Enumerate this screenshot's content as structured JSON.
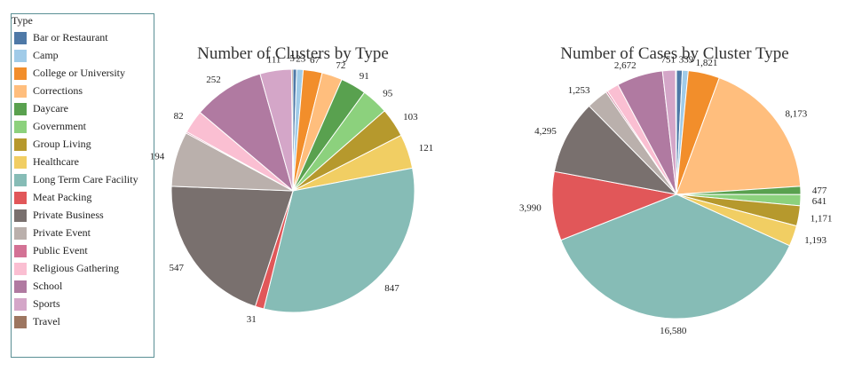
{
  "legend": {
    "title": "Type",
    "items": [
      {
        "label": "Bar or Restaurant",
        "color": "#4e79a7"
      },
      {
        "label": "Camp",
        "color": "#a0cbe8"
      },
      {
        "label": "College or University",
        "color": "#f28e2b"
      },
      {
        "label": "Corrections",
        "color": "#ffbe7d"
      },
      {
        "label": "Daycare",
        "color": "#59a14f"
      },
      {
        "label": "Government",
        "color": "#8cd17d"
      },
      {
        "label": "Group Living",
        "color": "#b6992d"
      },
      {
        "label": "Healthcare",
        "color": "#f1ce63"
      },
      {
        "label": "Long Term Care Facility",
        "color": "#86bcb6"
      },
      {
        "label": "Meat Packing",
        "color": "#e15759"
      },
      {
        "label": "Private Business",
        "color": "#79706e"
      },
      {
        "label": "Private Event",
        "color": "#bab0ac"
      },
      {
        "label": "Public Event",
        "color": "#d37295"
      },
      {
        "label": "Religious Gathering",
        "color": "#fabfd2"
      },
      {
        "label": "School",
        "color": "#b07aa1"
      },
      {
        "label": "Sports",
        "color": "#d4a6c8"
      },
      {
        "label": "Travel",
        "color": "#9d7660"
      }
    ]
  },
  "chart_data": [
    {
      "type": "pie",
      "title": "Number of Clusters by Type",
      "categories": [
        "Bar or Restaurant",
        "Camp",
        "College or University",
        "Corrections",
        "Daycare",
        "Government",
        "Group Living",
        "Healthcare",
        "Long Term Care Facility",
        "Meat Packing",
        "Private Business",
        "Private Event",
        "Public Event",
        "Religious Gathering",
        "School",
        "Sports",
        "Travel"
      ],
      "values": [
        13,
        23,
        67,
        72,
        91,
        95,
        103,
        121,
        847,
        31,
        547,
        194,
        5,
        82,
        252,
        111,
        5
      ],
      "labels": [
        "",
        "23",
        "67",
        "72",
        "91",
        "95",
        "103",
        "121",
        "847",
        "31",
        "547",
        "194",
        "",
        "82",
        "252",
        "111",
        "5"
      ]
    },
    {
      "type": "pie",
      "title": "Number of Cases by Cluster Type",
      "categories": [
        "Bar or Restaurant",
        "Camp",
        "College or University",
        "Corrections",
        "Daycare",
        "Government",
        "Group Living",
        "Healthcare",
        "Long Term Care Facility",
        "Meat Packing",
        "Private Business",
        "Private Event",
        "Public Event",
        "Religious Gathering",
        "School",
        "Sports",
        "Travel"
      ],
      "values": [
        339,
        339,
        1821,
        8173,
        477,
        641,
        1171,
        1193,
        16580,
        3990,
        4295,
        1253,
        100,
        700,
        2672,
        751,
        50
      ],
      "labels": [
        "",
        "339",
        "1,821",
        "8,173",
        "477",
        "641",
        "1,171",
        "1,193",
        "16,580",
        "3,990",
        "4,295",
        "1,253",
        "",
        "",
        "2,672",
        "751",
        ""
      ]
    }
  ]
}
